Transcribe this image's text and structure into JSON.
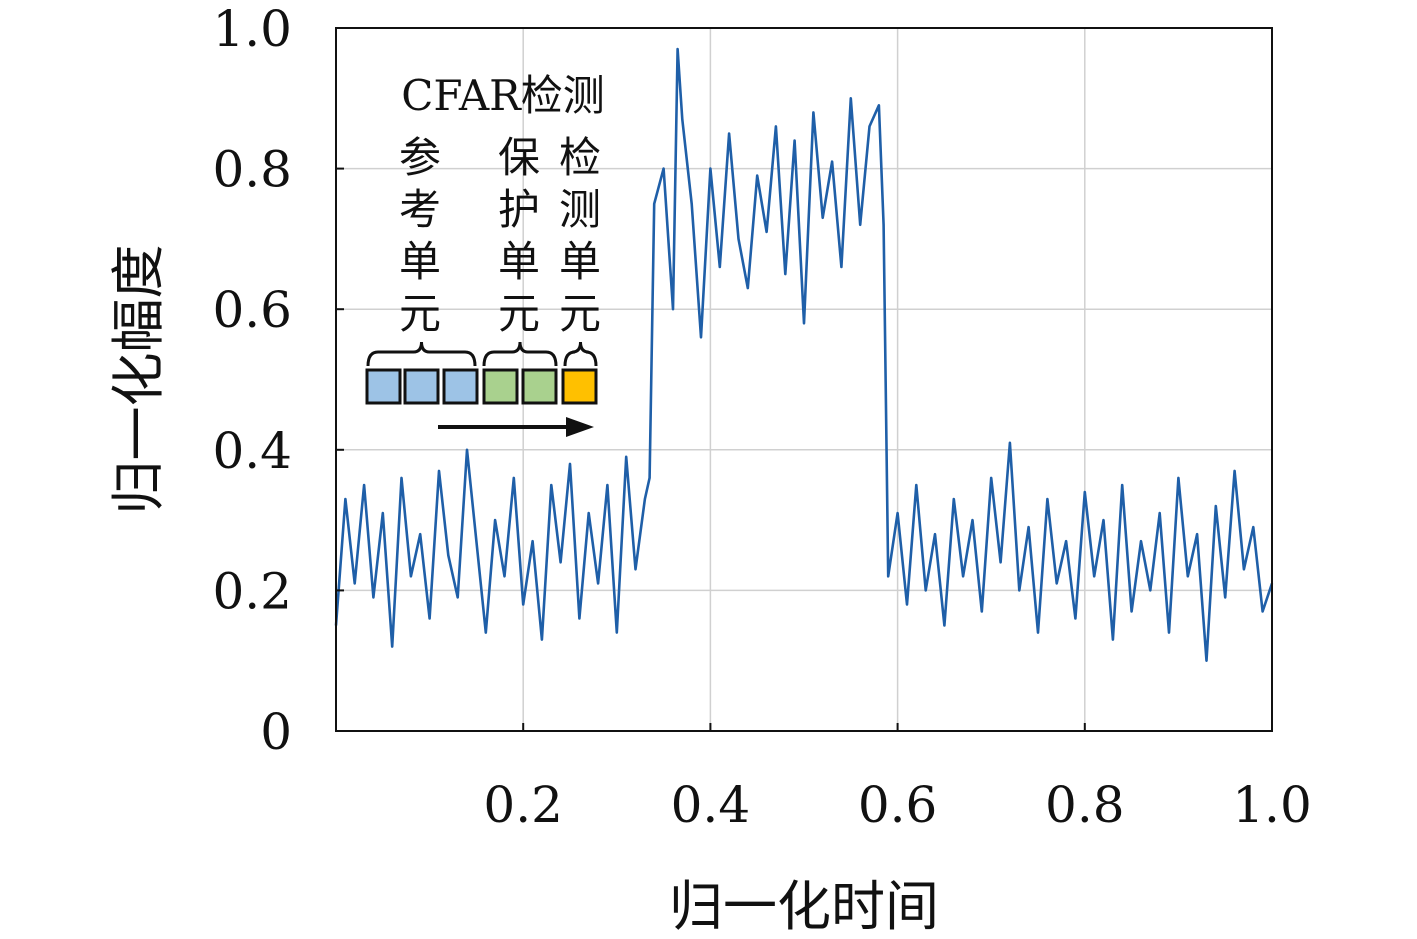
{
  "chart_data": {
    "type": "line",
    "xlabel": "归一化时间",
    "ylabel": "归一化幅度",
    "xlim": [
      0,
      1.0
    ],
    "ylim": [
      0,
      1.0
    ],
    "xticks": [
      "0.2",
      "0.4",
      "0.6",
      "0.8",
      "1.0"
    ],
    "xtick_values": [
      0.2,
      0.4,
      0.6,
      0.8,
      1.0
    ],
    "yticks": [
      "0",
      "0.2",
      "0.4",
      "0.6",
      "0.8",
      "1.0"
    ],
    "ytick_values": [
      0,
      0.2,
      0.4,
      0.6,
      0.8,
      1.0
    ],
    "grid": true,
    "series": [
      {
        "color": "#1f5fa8",
        "x": [
          0.0,
          0.01,
          0.02,
          0.03,
          0.04,
          0.05,
          0.06,
          0.07,
          0.08,
          0.09,
          0.1,
          0.11,
          0.12,
          0.13,
          0.14,
          0.15,
          0.16,
          0.17,
          0.18,
          0.19,
          0.2,
          0.21,
          0.22,
          0.23,
          0.24,
          0.25,
          0.26,
          0.27,
          0.28,
          0.29,
          0.3,
          0.31,
          0.32,
          0.33,
          0.335,
          0.34,
          0.35,
          0.36,
          0.365,
          0.37,
          0.38,
          0.39,
          0.4,
          0.41,
          0.42,
          0.43,
          0.44,
          0.45,
          0.46,
          0.47,
          0.48,
          0.49,
          0.5,
          0.51,
          0.52,
          0.53,
          0.54,
          0.55,
          0.56,
          0.57,
          0.58,
          0.585,
          0.59,
          0.6,
          0.61,
          0.62,
          0.63,
          0.64,
          0.65,
          0.66,
          0.67,
          0.68,
          0.69,
          0.7,
          0.71,
          0.72,
          0.73,
          0.74,
          0.75,
          0.76,
          0.77,
          0.78,
          0.79,
          0.8,
          0.81,
          0.82,
          0.83,
          0.84,
          0.85,
          0.86,
          0.87,
          0.88,
          0.89,
          0.9,
          0.91,
          0.92,
          0.93,
          0.94,
          0.95,
          0.96,
          0.97,
          0.98,
          0.99,
          1.0
        ],
        "y": [
          0.15,
          0.33,
          0.21,
          0.35,
          0.19,
          0.31,
          0.12,
          0.36,
          0.22,
          0.28,
          0.16,
          0.37,
          0.25,
          0.19,
          0.4,
          0.27,
          0.14,
          0.3,
          0.22,
          0.36,
          0.18,
          0.27,
          0.13,
          0.35,
          0.24,
          0.38,
          0.16,
          0.31,
          0.21,
          0.35,
          0.14,
          0.39,
          0.23,
          0.33,
          0.36,
          0.75,
          0.8,
          0.6,
          0.97,
          0.87,
          0.75,
          0.56,
          0.8,
          0.66,
          0.85,
          0.7,
          0.63,
          0.79,
          0.71,
          0.86,
          0.65,
          0.84,
          0.58,
          0.88,
          0.73,
          0.81,
          0.66,
          0.9,
          0.72,
          0.86,
          0.89,
          0.72,
          0.22,
          0.31,
          0.18,
          0.35,
          0.2,
          0.28,
          0.15,
          0.33,
          0.22,
          0.3,
          0.17,
          0.36,
          0.24,
          0.41,
          0.2,
          0.29,
          0.14,
          0.33,
          0.21,
          0.27,
          0.16,
          0.34,
          0.22,
          0.3,
          0.13,
          0.35,
          0.17,
          0.27,
          0.2,
          0.31,
          0.14,
          0.36,
          0.22,
          0.28,
          0.1,
          0.32,
          0.19,
          0.37,
          0.23,
          0.29,
          0.17,
          0.21
        ]
      }
    ],
    "annotation": {
      "title": "CFAR检测",
      "labels": [
        {
          "lines": [
            "参",
            "考",
            "单",
            "元"
          ]
        },
        {
          "lines": [
            "保",
            "护",
            "单",
            "元"
          ]
        },
        {
          "lines": [
            "检",
            "测",
            "单",
            "元"
          ]
        }
      ],
      "cells": [
        {
          "color": "#9dc3e6"
        },
        {
          "color": "#9dc3e6"
        },
        {
          "color": "#9dc3e6"
        },
        {
          "color": "#a9d18e"
        },
        {
          "color": "#a9d18e"
        },
        {
          "color": "#ffc000"
        }
      ]
    }
  }
}
